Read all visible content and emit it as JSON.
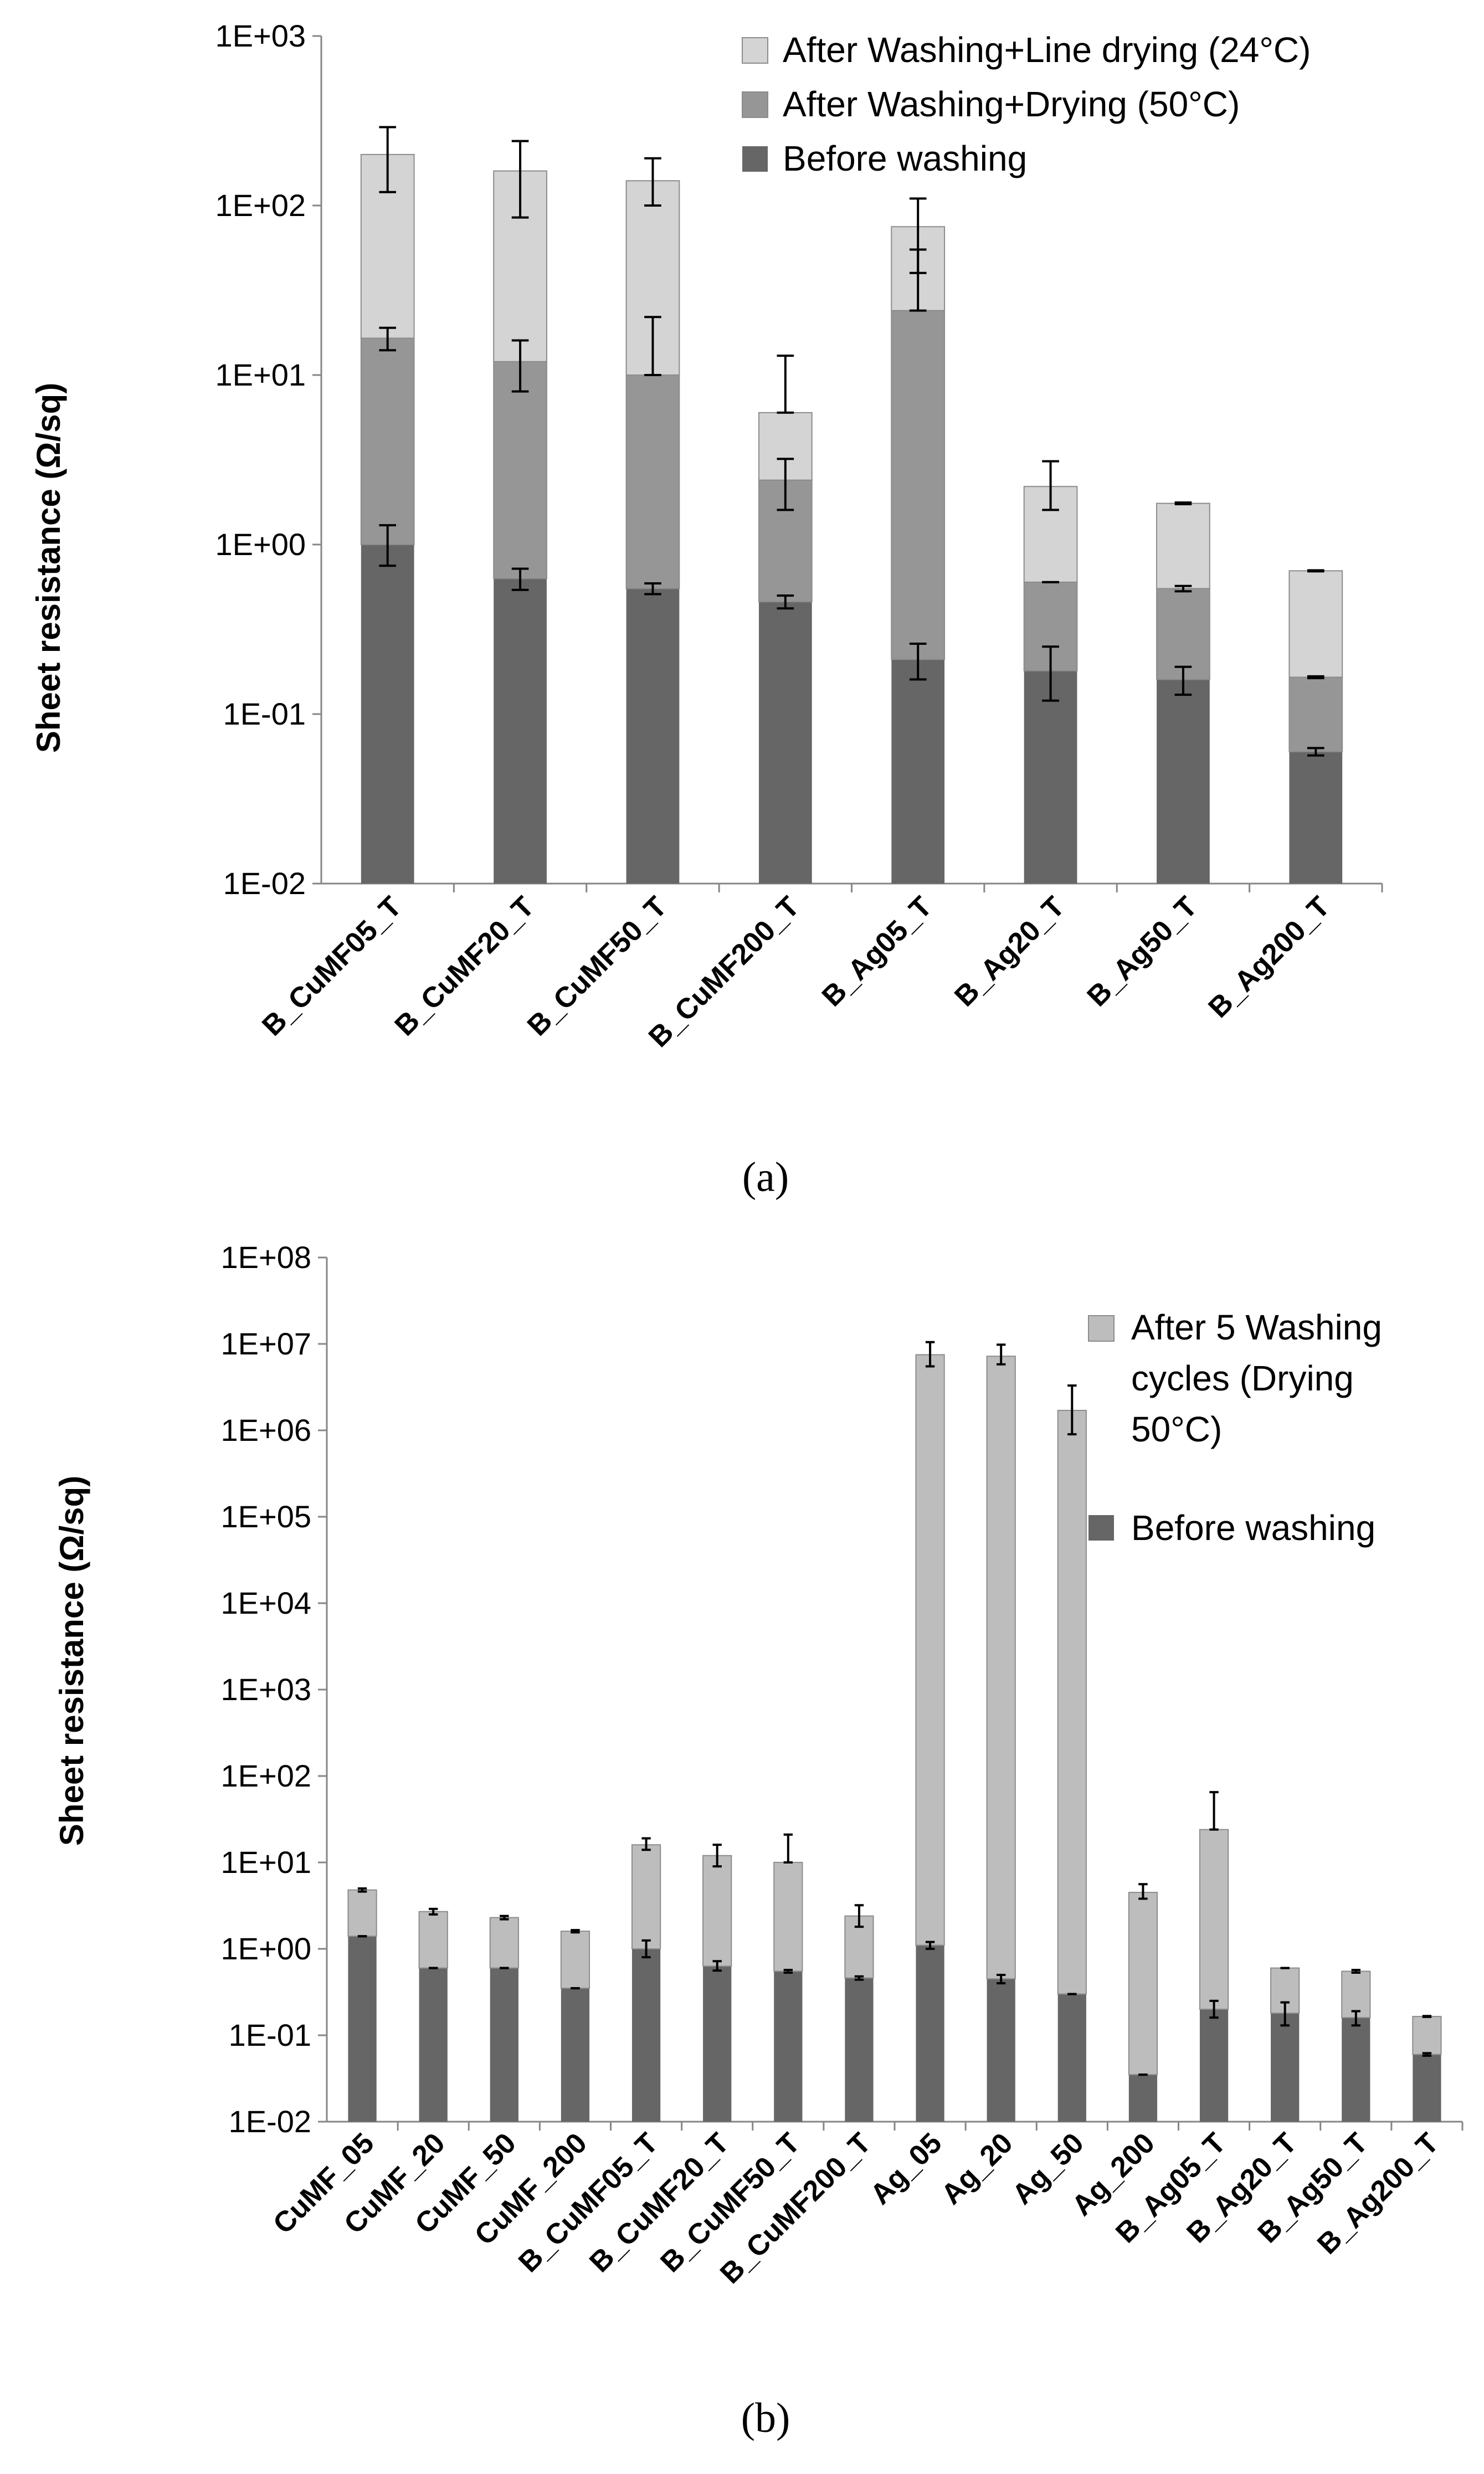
{
  "chart_data": [
    {
      "type": "bar",
      "stacked": true,
      "log_scale": true,
      "caption": "(a)",
      "ylabel": "Sheet resistance (Ω/sq)",
      "ylim": [
        0.01,
        1000
      ],
      "yticks": [
        "1E-02",
        "1E-01",
        "1E+00",
        "1E+01",
        "1E+02",
        "1E+03"
      ],
      "categories": [
        "B_CuMF05_T",
        "B_CuMF20_T",
        "B_CuMF50_T",
        "B_CuMF200_T",
        "B_Ag05_T",
        "B_Ag20_T",
        "B_Ag50_T",
        "B_Ag200_T"
      ],
      "series": [
        {
          "name": "Before washing",
          "color": "#666666",
          "values": [
            1.0,
            0.63,
            0.55,
            0.46,
            0.21,
            0.18,
            0.16,
            0.06
          ],
          "err_low": [
            0.75,
            0.54,
            0.51,
            0.42,
            0.16,
            0.12,
            0.13,
            0.057
          ],
          "err_high": [
            1.3,
            0.72,
            0.59,
            0.5,
            0.26,
            0.25,
            0.19,
            0.063
          ]
        },
        {
          "name": "After Washing+Drying (50°C)",
          "color": "#969696",
          "values": [
            16.5,
            12,
            10,
            2.4,
            24,
            0.6,
            0.55,
            0.165
          ],
          "err_low": [
            14,
            8,
            10,
            1.6,
            24,
            0.6,
            0.53,
            0.163
          ],
          "err_high": [
            19,
            16,
            22,
            3.2,
            55,
            0.6,
            0.57,
            0.167
          ]
        },
        {
          "name": "After Washing+Line drying (24°C)",
          "color": "#d4d4d4",
          "values": [
            200,
            160,
            140,
            6,
            75,
            2.2,
            1.75,
            0.7
          ],
          "err_low": [
            120,
            85,
            100,
            6,
            40,
            1.6,
            1.73,
            0.695
          ],
          "err_high": [
            290,
            240,
            190,
            13,
            110,
            3.1,
            1.77,
            0.705
          ]
        }
      ],
      "legend": [
        "After Washing+Line drying (24°C)",
        "After Washing+Drying (50°C)",
        "Before washing"
      ],
      "legend_position": "top-right"
    },
    {
      "type": "bar",
      "stacked": true,
      "log_scale": true,
      "caption": "(b)",
      "ylabel": "Sheet resistance (Ω/sq)",
      "ylim": [
        0.01,
        100000000
      ],
      "yticks": [
        "1E-02",
        "1E-01",
        "1E+00",
        "1E+01",
        "1E+02",
        "1E+03",
        "1E+04",
        "1E+05",
        "1E+06",
        "1E+07",
        "1E+08"
      ],
      "categories": [
        "CuMF_05",
        "CuMF_20",
        "CuMF_50",
        "CuMF_200",
        "B_CuMF05_T",
        "B_CuMF20_T",
        "B_CuMF50_T",
        "B_CuMF200_T",
        "Ag_05",
        "Ag_20",
        "Ag_50",
        "Ag_200",
        "B_Ag05_T",
        "B_Ag20_T",
        "B_Ag50_T",
        "B_Ag200_T"
      ],
      "series": [
        {
          "name": "Before washing",
          "color": "#666666",
          "values": [
            1.4,
            0.6,
            0.6,
            0.35,
            1.0,
            0.63,
            0.55,
            0.46,
            1.1,
            0.45,
            0.3,
            0.035,
            0.2,
            0.18,
            0.16,
            0.06
          ],
          "err_low": [
            1.4,
            0.6,
            0.6,
            0.35,
            0.8,
            0.56,
            0.53,
            0.44,
            1.0,
            0.4,
            0.3,
            0.035,
            0.16,
            0.13,
            0.13,
            0.058
          ],
          "err_high": [
            1.4,
            0.6,
            0.6,
            0.35,
            1.25,
            0.72,
            0.57,
            0.48,
            1.2,
            0.5,
            0.3,
            0.035,
            0.25,
            0.24,
            0.19,
            0.062
          ]
        },
        {
          "name": "After 5 Washing cycles (Drying 50°C)",
          "color": "#bdbdbd",
          "values": [
            4.8,
            2.7,
            2.3,
            1.6,
            16,
            12,
            10,
            2.4,
            7500000,
            7200000,
            1700000,
            4.5,
            24,
            0.6,
            0.55,
            0.165
          ],
          "err_low": [
            4.6,
            2.5,
            2.2,
            1.55,
            14,
            9,
            10,
            1.8,
            5500000,
            5800000,
            900000,
            3.8,
            24,
            0.6,
            0.53,
            0.163
          ],
          "err_high": [
            5.0,
            2.9,
            2.4,
            1.65,
            19,
            16,
            21,
            3.2,
            10500000,
            9800000,
            3300000,
            5.6,
            65,
            0.6,
            0.57,
            0.167
          ]
        }
      ],
      "legend": [
        "After 5 Washing cycles (Drying 50°C)",
        "Before washing"
      ],
      "legend_lines": [
        [
          "After 5 Washing",
          "cycles (Drying",
          "50°C)"
        ],
        [
          "Before washing"
        ]
      ],
      "legend_position": "top-right"
    }
  ]
}
